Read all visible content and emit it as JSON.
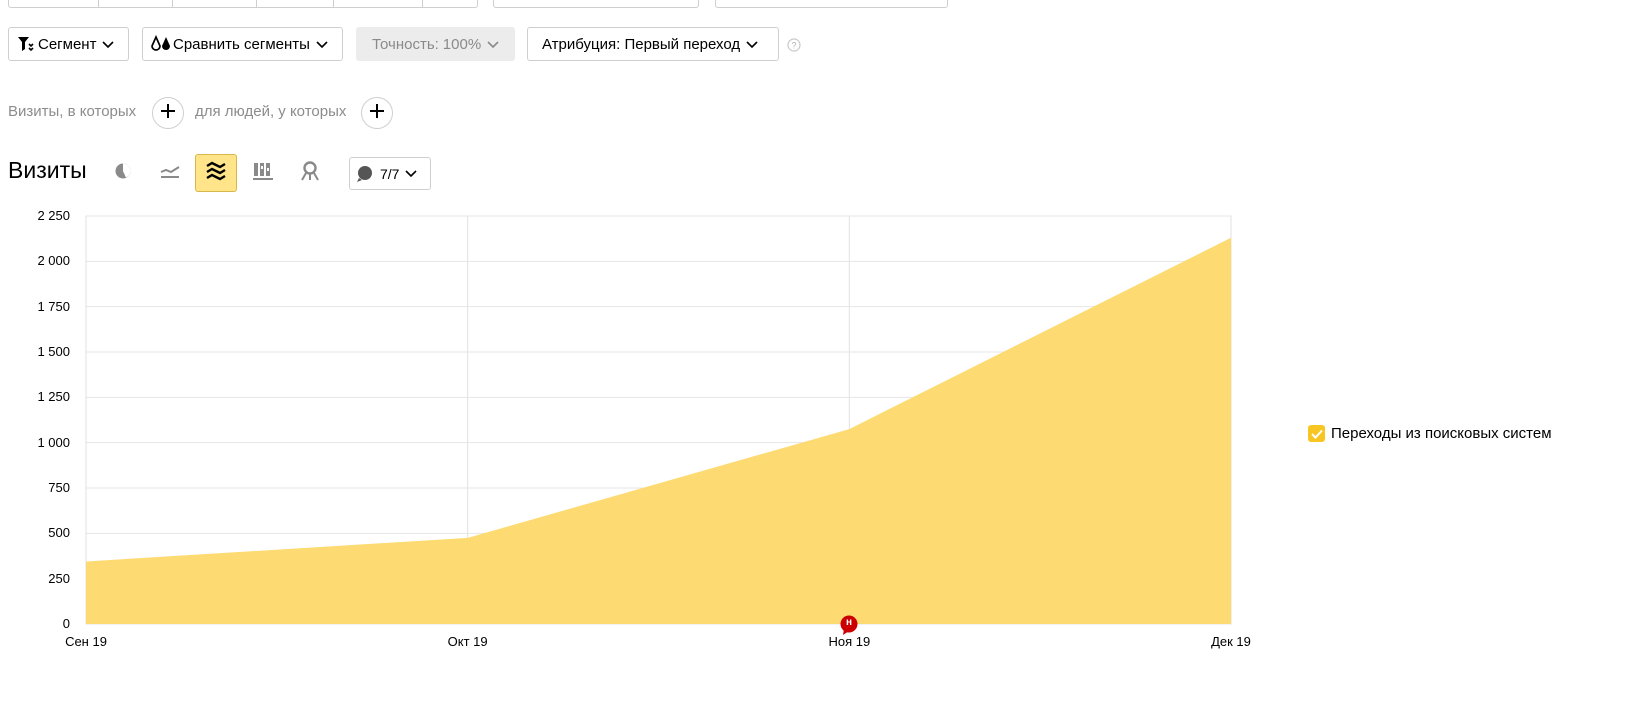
{
  "toolbar": {
    "segment_label": "Сегмент",
    "compare_label": "Сравнить сегменты",
    "accuracy_label": "Точность:",
    "accuracy_value": "100%",
    "attribution_label": "Атрибуция: Первый переход"
  },
  "filters": {
    "visits_hint": "Визиты, в которых",
    "people_hint": "для людей, у которых"
  },
  "chart_panel": {
    "title": "Визиты",
    "annotations_count": "7/7",
    "event_marker": "н"
  },
  "legend": {
    "series_label": "Переходы из поисковых систем",
    "checked": true
  },
  "colors": {
    "area_fill": "#fdd866",
    "accent_yellow": "#f7c623",
    "event_marker": "#cc0000"
  },
  "chart_data": {
    "type": "area",
    "title": "Визиты",
    "xlabel": "",
    "ylabel": "",
    "x": [
      "Сен 19",
      "Окт 19",
      "Ноя 19",
      "Дек 19"
    ],
    "series": [
      {
        "name": "Переходы из поисковых систем",
        "values": [
          345,
          475,
          1075,
          2130
        ]
      }
    ],
    "ylim": [
      0,
      2250
    ],
    "y_ticks": [
      0,
      250,
      500,
      750,
      1000,
      1250,
      1500,
      1750,
      2000,
      2250
    ],
    "y_tick_labels": [
      "0",
      "250",
      "500",
      "750",
      "1 000",
      "1 250",
      "1 500",
      "1 750",
      "2 000",
      "2 250"
    ],
    "grid": true,
    "legend_position": "right"
  }
}
